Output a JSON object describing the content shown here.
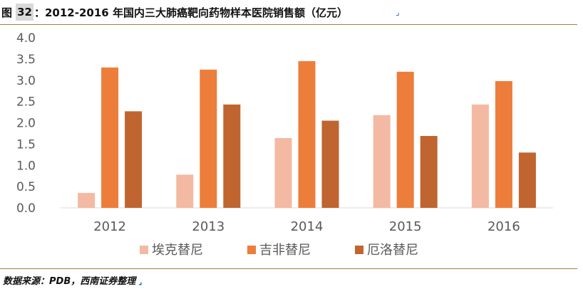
{
  "header": {
    "fig_label": "图",
    "fig_number": "32",
    "title": "：2012-2016 年国内三大肺癌靶向药物样本医院销售额（亿元）",
    "mark": "⌟"
  },
  "chart_data": {
    "type": "bar",
    "title": "",
    "xlabel": "",
    "ylabel": "",
    "categories": [
      "2012",
      "2013",
      "2014",
      "2015",
      "2016"
    ],
    "ylim": [
      0,
      4.0
    ],
    "yticks": [
      "0.0",
      "0.5",
      "1.0",
      "1.5",
      "2.0",
      "2.5",
      "3.0",
      "3.5",
      "4.0"
    ],
    "grid": false,
    "legend_position": "bottom",
    "series": [
      {
        "name": "埃克替尼",
        "color": "#f4b9a2",
        "values": [
          0.35,
          0.78,
          1.64,
          2.18,
          2.43
        ]
      },
      {
        "name": "吉非替尼",
        "color": "#ed7d3a",
        "values": [
          3.3,
          3.25,
          3.45,
          3.2,
          2.98
        ]
      },
      {
        "name": "厄洛替尼",
        "color": "#c0652f",
        "values": [
          2.27,
          2.43,
          2.05,
          1.69,
          1.3
        ]
      }
    ]
  },
  "footer": {
    "source": "数据来源：PDB，西南证券整理",
    "mark": "⌟"
  }
}
